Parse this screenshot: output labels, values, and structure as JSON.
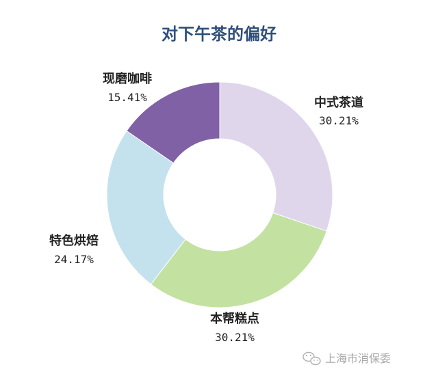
{
  "chart_data": {
    "type": "pie",
    "title": "对下午茶的偏好",
    "donut": true,
    "slices": [
      {
        "label": "中式茶道",
        "value": 30.21,
        "display": "30.21%",
        "color": "#e0d6ec"
      },
      {
        "label": "本帮糕点",
        "value": 30.21,
        "display": "30.21%",
        "color": "#c3e1a1"
      },
      {
        "label": "特色烘焙",
        "value": 24.17,
        "display": "24.17%",
        "color": "#c4e2ee"
      },
      {
        "label": "现磨咖啡",
        "value": 15.41,
        "display": "15.41%",
        "color": "#8061a6"
      }
    ]
  },
  "watermark": {
    "text": "上海市消保委",
    "icon": "wechat-icon"
  }
}
